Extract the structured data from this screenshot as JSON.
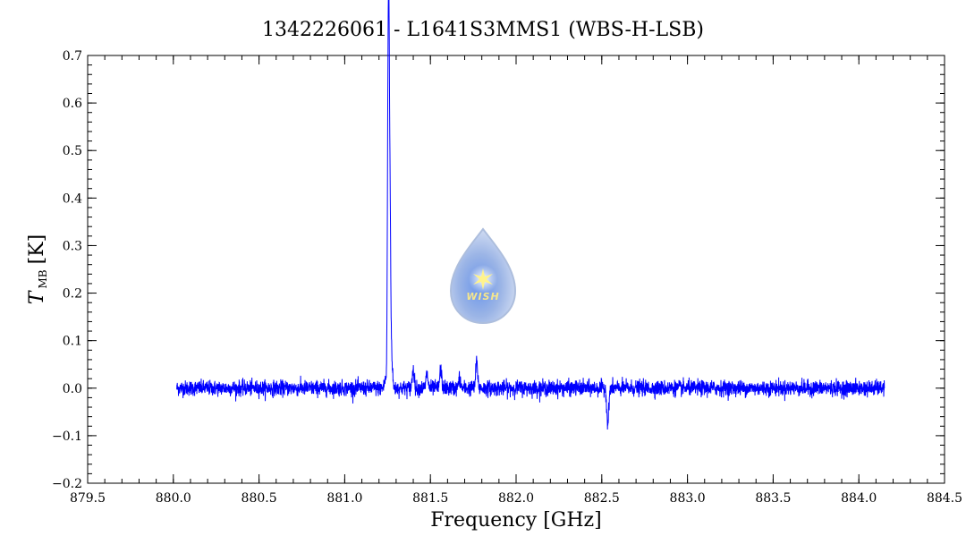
{
  "chart_data": {
    "type": "line",
    "title": "1342226061 - L1641S3MMS1 (WBS-H-LSB)",
    "xlabel": "Frequency [GHz]",
    "ylabel_main": "T",
    "ylabel_sub": "MB",
    "ylabel_unit": "[K]",
    "xlim": [
      879.5,
      884.5
    ],
    "ylim": [
      -0.2,
      0.7
    ],
    "xticks": [
      879.5,
      880.0,
      880.5,
      881.0,
      881.5,
      882.0,
      882.5,
      883.0,
      883.5,
      884.0,
      884.5
    ],
    "xtick_labels": [
      "879.5",
      "880.0",
      "880.5",
      "881.0",
      "881.5",
      "882.0",
      "882.5",
      "883.0",
      "883.5",
      "884.0",
      "884.5"
    ],
    "yticks": [
      -0.2,
      -0.1,
      0.0,
      0.1,
      0.2,
      0.3,
      0.4,
      0.5,
      0.6,
      0.7
    ],
    "ytick_labels": [
      "-0.2",
      "-0.1",
      "0.0",
      "0.1",
      "0.2",
      "0.3",
      "0.4",
      "0.5",
      "0.6",
      "0.7"
    ],
    "grid": false,
    "line_color": "#0000ff",
    "series": [
      {
        "x_range": [
          880.02,
          884.15
        ],
        "baseline": 0.0,
        "noise_rms": 0.008,
        "features": [
          {
            "x": 881.238,
            "y": 0.02
          },
          {
            "x": 881.252,
            "y": 0.51
          },
          {
            "x": 881.258,
            "y": 0.66
          },
          {
            "x": 881.265,
            "y": 0.31
          },
          {
            "x": 881.272,
            "y": 0.08
          },
          {
            "x": 881.4,
            "y": 0.04
          },
          {
            "x": 881.48,
            "y": 0.03
          },
          {
            "x": 881.56,
            "y": 0.04
          },
          {
            "x": 881.67,
            "y": 0.02
          },
          {
            "x": 881.77,
            "y": 0.055
          },
          {
            "x": 882.535,
            "y": -0.075
          }
        ]
      }
    ]
  },
  "logo": {
    "text": "WISH",
    "color": "#b4c8ec"
  }
}
